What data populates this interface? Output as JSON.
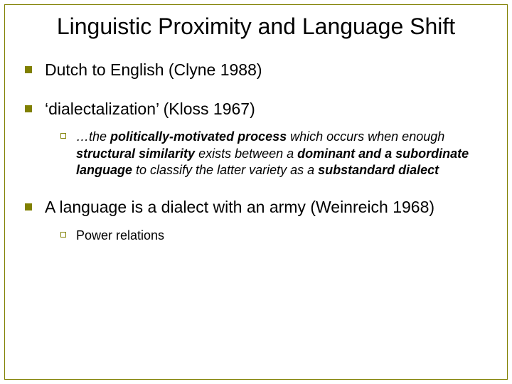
{
  "slide": {
    "title": "Linguistic Proximity and Language Shift",
    "title_fontsize": 32,
    "title_color": "#000000",
    "border_color": "#808000",
    "background_color": "#ffffff",
    "bullet1_color": "#808000",
    "bullet2_border_color": "#808000",
    "body_fontsize_lvl1": 23,
    "body_fontsize_lvl2": 18,
    "items": [
      {
        "text": "Dutch to English (Clyne 1988)",
        "sub": []
      },
      {
        "text": "‘dialectalization’ (Kloss 1967)",
        "sub": [
          {
            "runs": [
              {
                "t": "…the ",
                "style": "italic"
              },
              {
                "t": "politically-motivated process",
                "style": "bolditalic"
              },
              {
                "t": " which occurs when enough ",
                "style": "italic"
              },
              {
                "t": "structural similarity",
                "style": "bolditalic"
              },
              {
                "t": " exists between a ",
                "style": "italic"
              },
              {
                "t": "dominant and a subordinate language",
                "style": "bolditalic"
              },
              {
                "t": " to classify the latter variety as a ",
                "style": "italic"
              },
              {
                "t": "substandard dialect",
                "style": "bolditalic"
              }
            ]
          }
        ]
      },
      {
        "text": "A language is a dialect with an army (Weinreich 1968)",
        "sub": [
          {
            "runs": [
              {
                "t": "Power relations",
                "style": "normal"
              }
            ]
          }
        ]
      }
    ]
  }
}
